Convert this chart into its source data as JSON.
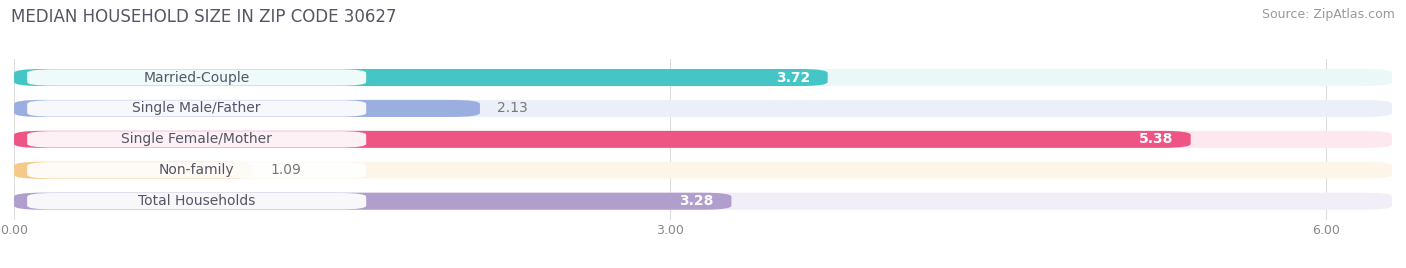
{
  "title": "MEDIAN HOUSEHOLD SIZE IN ZIP CODE 30627",
  "source": "Source: ZipAtlas.com",
  "categories": [
    "Married-Couple",
    "Single Male/Father",
    "Single Female/Mother",
    "Non-family",
    "Total Households"
  ],
  "values": [
    3.72,
    2.13,
    5.38,
    1.09,
    3.28
  ],
  "value_labels": [
    "3.72",
    "2.13",
    "5.38",
    "1.09",
    "3.28"
  ],
  "bar_colors": [
    "#45c5c5",
    "#9aaee0",
    "#ee5585",
    "#f5c98a",
    "#b09ecc"
  ],
  "bar_bg_colors": [
    "#eaf8f8",
    "#eaeff8",
    "#fde8f0",
    "#fdf5e8",
    "#f2eef8"
  ],
  "label_bg_color": "#ffffff",
  "xlim": [
    0,
    6.3
  ],
  "xtick_vals": [
    0.0,
    3.0,
    6.0
  ],
  "xtick_labels": [
    "0.00",
    "3.00",
    "6.00"
  ],
  "label_fontsize": 10,
  "value_fontsize": 10,
  "title_fontsize": 12,
  "source_fontsize": 9,
  "title_color": "#555566",
  "label_color": "#555566",
  "value_color_inside": "#ffffff",
  "value_color_outside": "#777777",
  "background_color": "#ffffff",
  "grid_color": "#dddddd",
  "bar_height": 0.55,
  "bar_gap": 1.0
}
